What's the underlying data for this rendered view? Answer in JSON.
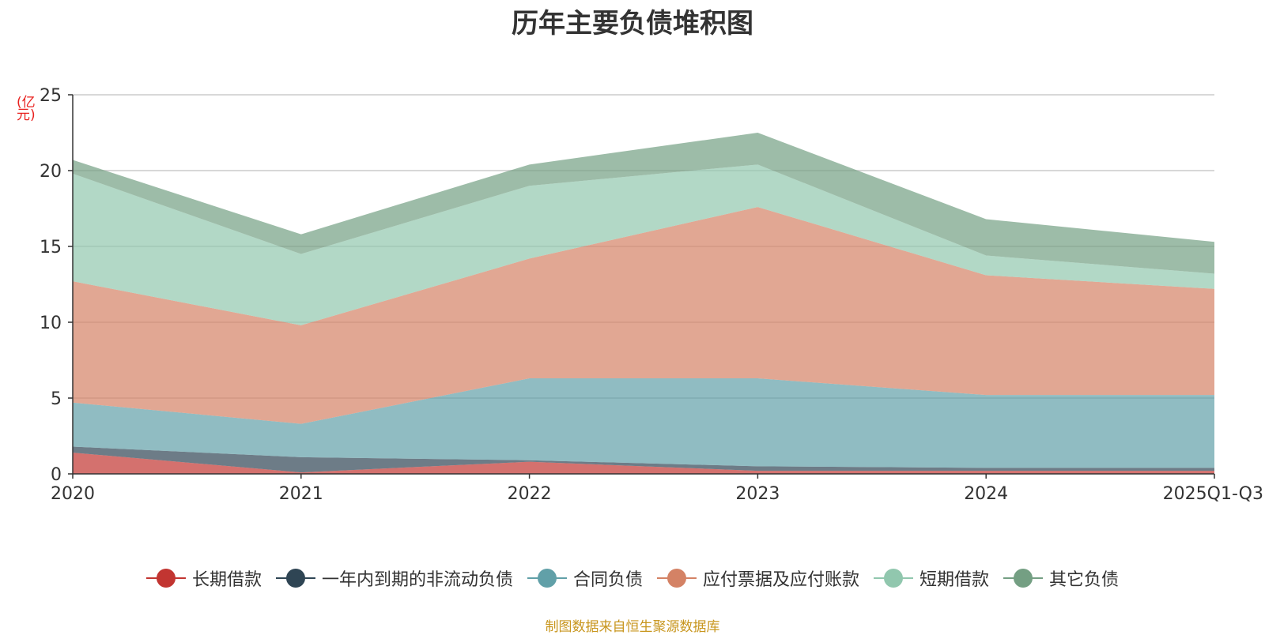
{
  "chart_data": {
    "type": "area",
    "stacked": true,
    "title": "历年主要负债堆积图",
    "ylabel": "(亿元)",
    "xlabel": "",
    "categories": [
      "2020",
      "2021",
      "2022",
      "2023",
      "2024",
      "2025Q1-Q3"
    ],
    "ylim": [
      0,
      25
    ],
    "yticks": [
      0,
      5,
      10,
      15,
      20,
      25
    ],
    "grid": true,
    "legend_position": "bottom",
    "series": [
      {
        "name": "长期借款",
        "color": "#c23531",
        "values": [
          1.4,
          0.1,
          0.8,
          0.2,
          0.2,
          0.2
        ]
      },
      {
        "name": "一年内到期的非流动负债",
        "color": "#2f4554",
        "values": [
          0.4,
          1.0,
          0.1,
          0.3,
          0.2,
          0.2
        ]
      },
      {
        "name": "合同负债",
        "color": "#61a0a8",
        "values": [
          2.9,
          2.2,
          5.4,
          5.8,
          4.8,
          4.8
        ]
      },
      {
        "name": "应付票据及应付账款",
        "color": "#d48265",
        "values": [
          8.0,
          6.5,
          7.9,
          11.3,
          7.9,
          7.0
        ]
      },
      {
        "name": "短期借款",
        "color": "#91c7ae",
        "values": [
          7.1,
          4.7,
          4.8,
          2.8,
          1.3,
          1.0
        ]
      },
      {
        "name": "其它负债",
        "color": "#749f83",
        "values": [
          0.9,
          1.3,
          1.4,
          2.1,
          2.4,
          2.1
        ]
      }
    ]
  },
  "source_note": "制图数据来自恒生聚源数据库"
}
